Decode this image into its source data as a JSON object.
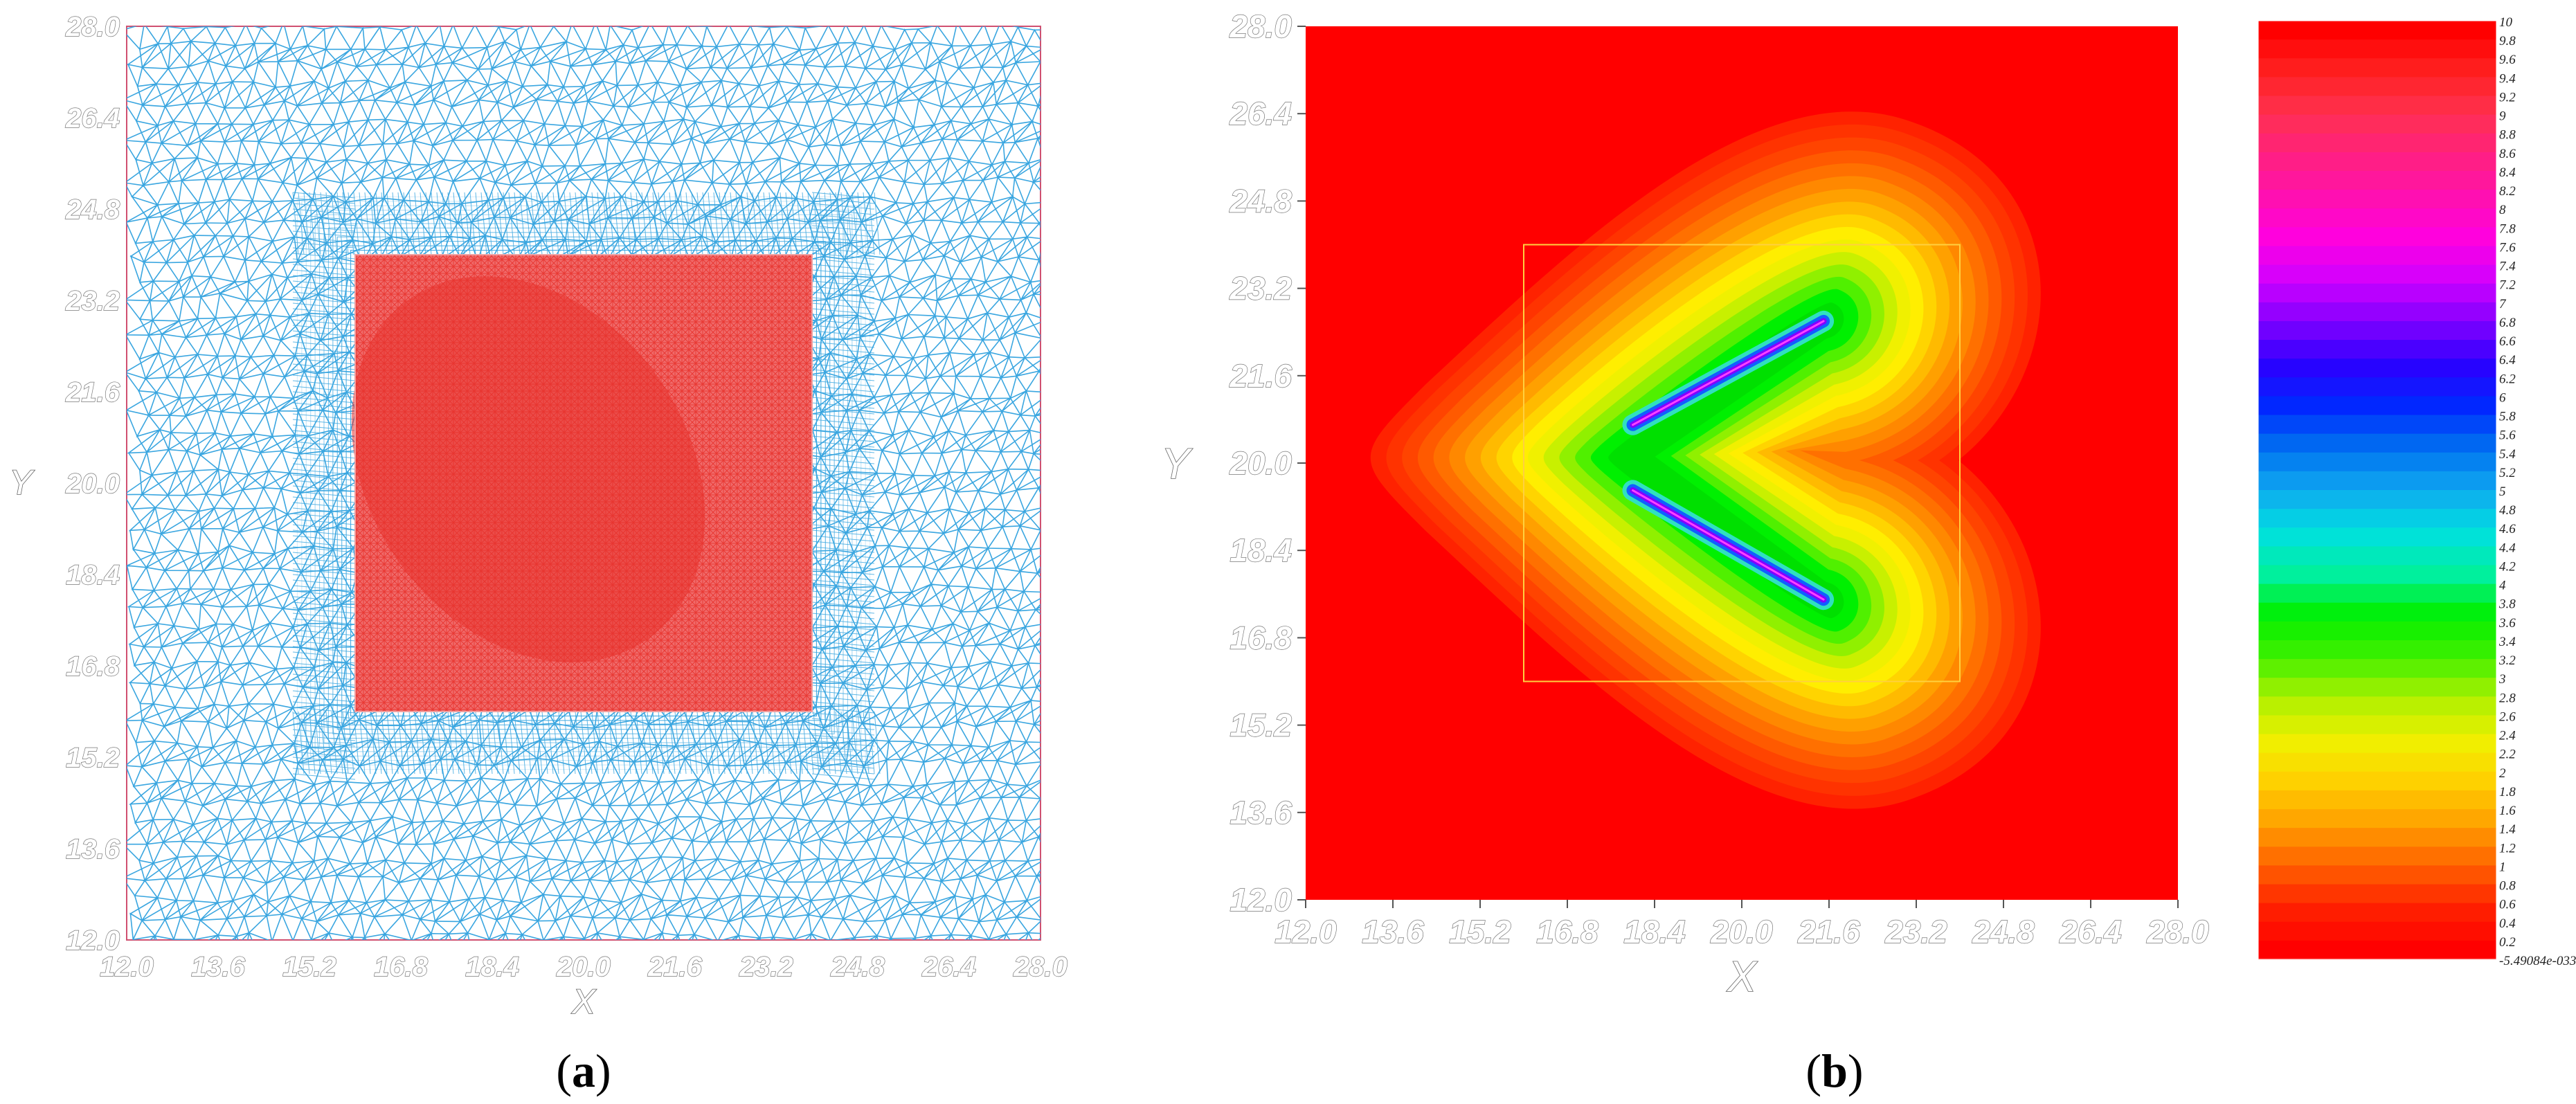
{
  "chart_data": [
    {
      "type": "scatter",
      "panel": "a",
      "caption": {
        "open": "(",
        "letter": "a",
        "close": ")"
      },
      "xlabel": "X",
      "ylabel": "Y",
      "xlim": [
        12.0,
        28.0
      ],
      "ylim": [
        12.0,
        28.0
      ],
      "ticks": [
        "12.0",
        "13.6",
        "15.2",
        "16.8",
        "18.4",
        "20.0",
        "21.6",
        "23.2",
        "24.8",
        "26.4",
        "28.0"
      ],
      "refined_region": {
        "x": [
          16.0,
          24.0
        ],
        "y": [
          16.0,
          24.0
        ]
      },
      "colors": {
        "coarse_mesh": "#3aa6e0",
        "fine_mesh": "#e8332e",
        "fine_fill": "#f06a6a",
        "border": "#d05070"
      }
    },
    {
      "type": "heatmap",
      "panel": "b",
      "caption": {
        "open": "(",
        "letter": "b",
        "close": ")"
      },
      "xlabel": "X",
      "ylabel": "Y",
      "xlim": [
        12.0,
        28.0
      ],
      "ylim": [
        12.0,
        28.0
      ],
      "ticks": [
        "12.0",
        "13.6",
        "15.2",
        "16.8",
        "18.4",
        "20.0",
        "21.6",
        "23.2",
        "24.8",
        "26.4",
        "28.0"
      ],
      "refined_region": {
        "x": [
          16.0,
          24.0
        ],
        "y": [
          16.0,
          24.0
        ]
      },
      "cracks": [
        {
          "start": [
            18.0,
            20.7
          ],
          "end": [
            21.5,
            22.6
          ]
        },
        {
          "start": [
            18.0,
            19.5
          ],
          "end": [
            21.5,
            17.5
          ]
        }
      ],
      "colorbar": {
        "labels": [
          "10",
          "9.8",
          "9.6",
          "9.4",
          "9.2",
          "9",
          "8.8",
          "8.6",
          "8.4",
          "8.2",
          "8",
          "7.8",
          "7.6",
          "7.4",
          "7.2",
          "7",
          "6.8",
          "6.6",
          "6.4",
          "6.2",
          "6",
          "5.8",
          "5.6",
          "5.4",
          "5.2",
          "5",
          "4.8",
          "4.6",
          "4.4",
          "4.2",
          "4",
          "3.8",
          "3.6",
          "3.4",
          "3.2",
          "3",
          "2.8",
          "2.6",
          "2.4",
          "2.2",
          "2",
          "1.8",
          "1.6",
          "1.4",
          "1.2",
          "1",
          "0.8",
          "0.6",
          "0.4",
          "0.2",
          "-5.49084e-033"
        ],
        "range": [
          0,
          10
        ],
        "colors": [
          "#ff0000",
          "#ff2020",
          "#ff3050",
          "#ff2080",
          "#ff10b0",
          "#ff00e0",
          "#d000ff",
          "#8000ff",
          "#2a00ff",
          "#0028ff",
          "#0070f0",
          "#10a8f0",
          "#00e0e0",
          "#00f0a0",
          "#00f000",
          "#40f000",
          "#b0f000",
          "#f0f000",
          "#ffd000",
          "#ffa000",
          "#ff6000",
          "#ff2000",
          "#ff0000"
        ]
      }
    }
  ]
}
